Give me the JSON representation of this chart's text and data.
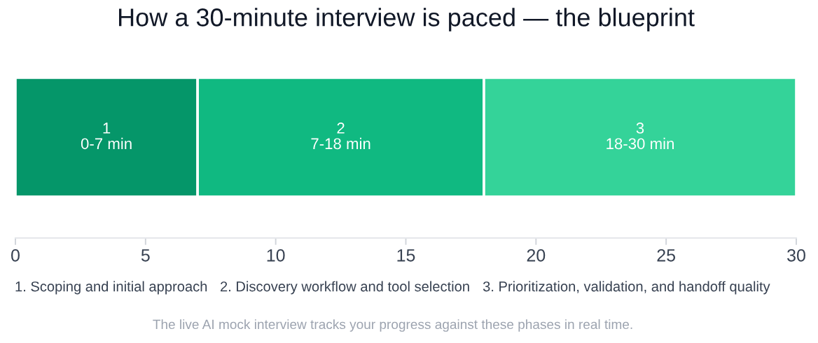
{
  "chart_data": {
    "type": "bar",
    "title": "How a 30-minute interview is paced — the blueprint",
    "orientation": "horizontal",
    "stacked": true,
    "categories": [
      null
    ],
    "tick_labels": "x",
    "xlim": [
      0,
      30
    ],
    "xticks": [
      0,
      5,
      10,
      15,
      20,
      25,
      30
    ],
    "series": [
      {
        "color": "#059669",
        "values": [
          7
        ]
      },
      {
        "color": "#10b981",
        "values": [
          11
        ]
      },
      {
        "color": "#34d399",
        "values": [
          12
        ]
      }
    ],
    "annotations": [
      "1\n0-7 min",
      "2\n7-18 min",
      "3\n18-30 min",
      "1. Scoping and initial approach",
      "2. Discovery workflow and tool selection",
      "3. Prioritization, validation, and handoff quality",
      "The live AI mock interview tracks your progress against these phases in real time."
    ]
  }
}
